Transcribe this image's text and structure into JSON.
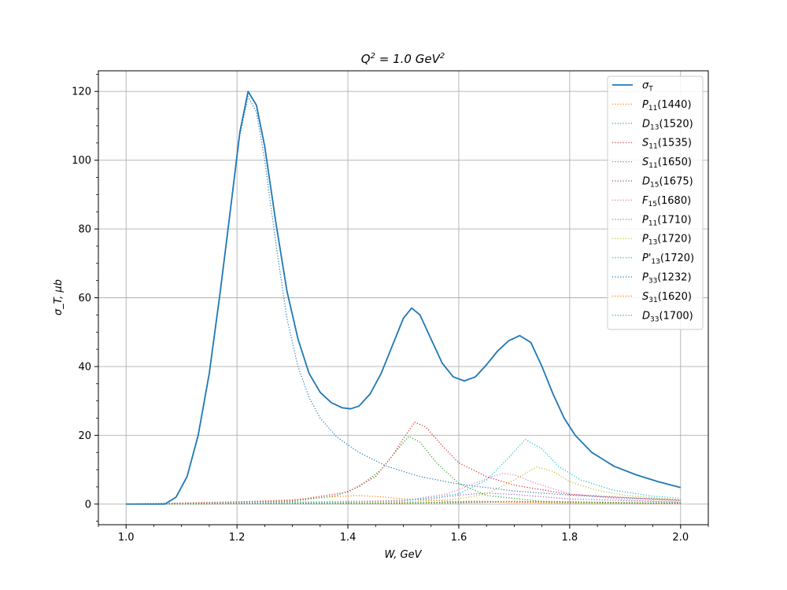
{
  "chart_data": {
    "type": "line",
    "title": "Q^2 = 1.0 GeV^2",
    "xlabel": "W, GeV",
    "ylabel": "σ_T, μb",
    "xlim": [
      0.95,
      2.05
    ],
    "ylim": [
      -6,
      126
    ],
    "xticks": [
      1.0,
      1.2,
      1.4,
      1.6,
      1.8,
      2.0
    ],
    "xtick_labels": [
      "1.0",
      "1.2",
      "1.4",
      "1.6",
      "1.8",
      "2.0"
    ],
    "yticks": [
      0,
      20,
      40,
      60,
      80,
      100,
      120
    ],
    "ytick_labels": [
      "0",
      "20",
      "40",
      "60",
      "80",
      "100",
      "120"
    ],
    "grid": true,
    "legend_position": "top-right",
    "series": [
      {
        "name": "σT",
        "color": "#1f77b4",
        "style": "solid",
        "points": [
          [
            1.0,
            0
          ],
          [
            1.07,
            0
          ],
          [
            1.09,
            2
          ],
          [
            1.11,
            8
          ],
          [
            1.13,
            20
          ],
          [
            1.15,
            38
          ],
          [
            1.17,
            62
          ],
          [
            1.19,
            88
          ],
          [
            1.205,
            108
          ],
          [
            1.22,
            120
          ],
          [
            1.235,
            116
          ],
          [
            1.25,
            104
          ],
          [
            1.27,
            82
          ],
          [
            1.29,
            62
          ],
          [
            1.31,
            48
          ],
          [
            1.33,
            38
          ],
          [
            1.35,
            32.5
          ],
          [
            1.37,
            29.5
          ],
          [
            1.39,
            28
          ],
          [
            1.405,
            27.7
          ],
          [
            1.42,
            28.5
          ],
          [
            1.44,
            32
          ],
          [
            1.46,
            38
          ],
          [
            1.48,
            46
          ],
          [
            1.5,
            54
          ],
          [
            1.515,
            57
          ],
          [
            1.53,
            55
          ],
          [
            1.55,
            48
          ],
          [
            1.57,
            41
          ],
          [
            1.59,
            37
          ],
          [
            1.61,
            35.8
          ],
          [
            1.63,
            37
          ],
          [
            1.65,
            40.5
          ],
          [
            1.67,
            44.5
          ],
          [
            1.69,
            47.5
          ],
          [
            1.71,
            49
          ],
          [
            1.73,
            47
          ],
          [
            1.75,
            40
          ],
          [
            1.77,
            32
          ],
          [
            1.79,
            25
          ],
          [
            1.81,
            20
          ],
          [
            1.84,
            15
          ],
          [
            1.88,
            11
          ],
          [
            1.92,
            8.5
          ],
          [
            1.96,
            6.5
          ],
          [
            2.0,
            4.8
          ]
        ]
      },
      {
        "name": "P11(1440)",
        "color": "#ff7f0e",
        "style": "dotted",
        "points": [
          [
            1.0,
            0
          ],
          [
            1.2,
            0.5
          ],
          [
            1.3,
            1.3
          ],
          [
            1.38,
            2.2
          ],
          [
            1.42,
            2.5
          ],
          [
            1.46,
            2.1
          ],
          [
            1.52,
            1.3
          ],
          [
            1.6,
            0.7
          ],
          [
            1.8,
            0.25
          ],
          [
            2.0,
            0.1
          ]
        ]
      },
      {
        "name": "D13(1520)",
        "color": "#2ca02c",
        "style": "dotted",
        "points": [
          [
            1.0,
            0
          ],
          [
            1.3,
            0.8
          ],
          [
            1.38,
            2.5
          ],
          [
            1.42,
            5
          ],
          [
            1.46,
            10
          ],
          [
            1.49,
            16
          ],
          [
            1.51,
            19.7
          ],
          [
            1.53,
            18
          ],
          [
            1.56,
            12
          ],
          [
            1.6,
            6
          ],
          [
            1.65,
            2.5
          ],
          [
            1.75,
            0.8
          ],
          [
            2.0,
            0.2
          ]
        ]
      },
      {
        "name": "S11(1535)",
        "color": "#d62728",
        "style": "dotted",
        "points": [
          [
            1.0,
            0
          ],
          [
            1.3,
            1
          ],
          [
            1.4,
            3.5
          ],
          [
            1.45,
            8
          ],
          [
            1.48,
            14
          ],
          [
            1.5,
            19
          ],
          [
            1.52,
            23.8
          ],
          [
            1.54,
            22.5
          ],
          [
            1.57,
            17
          ],
          [
            1.6,
            12
          ],
          [
            1.65,
            8
          ],
          [
            1.7,
            5.5
          ],
          [
            1.8,
            2.8
          ],
          [
            2.0,
            1
          ]
        ]
      },
      {
        "name": "S11(1650)",
        "color": "#9467bd",
        "style": "dotted",
        "points": [
          [
            1.0,
            0
          ],
          [
            1.4,
            0.5
          ],
          [
            1.55,
            1.5
          ],
          [
            1.6,
            2.6
          ],
          [
            1.65,
            3.2
          ],
          [
            1.7,
            2.8
          ],
          [
            1.8,
            1.5
          ],
          [
            2.0,
            0.5
          ]
        ]
      },
      {
        "name": "D15(1675)",
        "color": "#8c564b",
        "style": "dotted",
        "points": [
          [
            1.0,
            0
          ],
          [
            1.5,
            0.2
          ],
          [
            1.6,
            0.5
          ],
          [
            1.67,
            0.7
          ],
          [
            1.75,
            0.5
          ],
          [
            2.0,
            0.15
          ]
        ]
      },
      {
        "name": "F15(1680)",
        "color": "#e377c2",
        "style": "dotted",
        "points": [
          [
            1.0,
            0
          ],
          [
            1.5,
            1
          ],
          [
            1.58,
            3
          ],
          [
            1.62,
            5.5
          ],
          [
            1.66,
            8
          ],
          [
            1.68,
            8.9
          ],
          [
            1.7,
            8.5
          ],
          [
            1.74,
            6
          ],
          [
            1.8,
            3
          ],
          [
            1.9,
            1.3
          ],
          [
            2.0,
            0.6
          ]
        ]
      },
      {
        "name": "P11(1710)",
        "color": "#7f7f7f",
        "style": "dotted",
        "points": [
          [
            1.0,
            0
          ],
          [
            1.6,
            0.3
          ],
          [
            1.7,
            0.7
          ],
          [
            1.8,
            0.5
          ],
          [
            2.0,
            0.2
          ]
        ]
      },
      {
        "name": "P13(1720)",
        "color": "#bcbd22",
        "style": "dotted",
        "points": [
          [
            1.0,
            0
          ],
          [
            1.5,
            0.5
          ],
          [
            1.6,
            1.5
          ],
          [
            1.65,
            3
          ],
          [
            1.7,
            7
          ],
          [
            1.74,
            10.8
          ],
          [
            1.77,
            9.5
          ],
          [
            1.8,
            6.5
          ],
          [
            1.85,
            4
          ],
          [
            1.9,
            2.5
          ],
          [
            2.0,
            1.2
          ]
        ]
      },
      {
        "name": "P'13(1720)",
        "color": "#17becf",
        "style": "dotted",
        "points": [
          [
            1.0,
            0
          ],
          [
            1.5,
            0.8
          ],
          [
            1.6,
            3
          ],
          [
            1.65,
            7
          ],
          [
            1.69,
            13.5
          ],
          [
            1.72,
            18.8
          ],
          [
            1.75,
            16
          ],
          [
            1.78,
            11
          ],
          [
            1.82,
            7
          ],
          [
            1.88,
            4
          ],
          [
            1.95,
            2.3
          ],
          [
            2.0,
            1.7
          ]
        ]
      },
      {
        "name": "P33(1232)",
        "color": "#1f77b4",
        "style": "dotted",
        "points": [
          [
            1.0,
            0
          ],
          [
            1.07,
            0
          ],
          [
            1.09,
            2
          ],
          [
            1.11,
            8
          ],
          [
            1.13,
            20
          ],
          [
            1.15,
            38
          ],
          [
            1.17,
            62
          ],
          [
            1.19,
            88
          ],
          [
            1.205,
            107
          ],
          [
            1.22,
            118.5
          ],
          [
            1.235,
            114
          ],
          [
            1.25,
            100
          ],
          [
            1.27,
            76
          ],
          [
            1.29,
            54
          ],
          [
            1.31,
            40
          ],
          [
            1.33,
            31
          ],
          [
            1.35,
            25
          ],
          [
            1.38,
            19.5
          ],
          [
            1.42,
            15
          ],
          [
            1.47,
            11
          ],
          [
            1.53,
            8
          ],
          [
            1.6,
            5.8
          ],
          [
            1.7,
            3.8
          ],
          [
            1.8,
            2.6
          ],
          [
            1.9,
            1.8
          ],
          [
            2.0,
            1.2
          ]
        ]
      },
      {
        "name": "S31(1620)",
        "color": "#ff7f0e",
        "style": "dotted",
        "points": [
          [
            1.0,
            0
          ],
          [
            1.45,
            0.2
          ],
          [
            1.58,
            0.6
          ],
          [
            1.62,
            0.9
          ],
          [
            1.7,
            0.6
          ],
          [
            2.0,
            0.15
          ]
        ]
      },
      {
        "name": "D33(1700)",
        "color": "#2ca02c",
        "style": "dotted",
        "points": [
          [
            1.0,
            0
          ],
          [
            1.45,
            0.2
          ],
          [
            1.6,
            0.6
          ],
          [
            1.7,
            0.8
          ],
          [
            1.8,
            0.6
          ],
          [
            2.0,
            0.3
          ]
        ]
      }
    ]
  }
}
